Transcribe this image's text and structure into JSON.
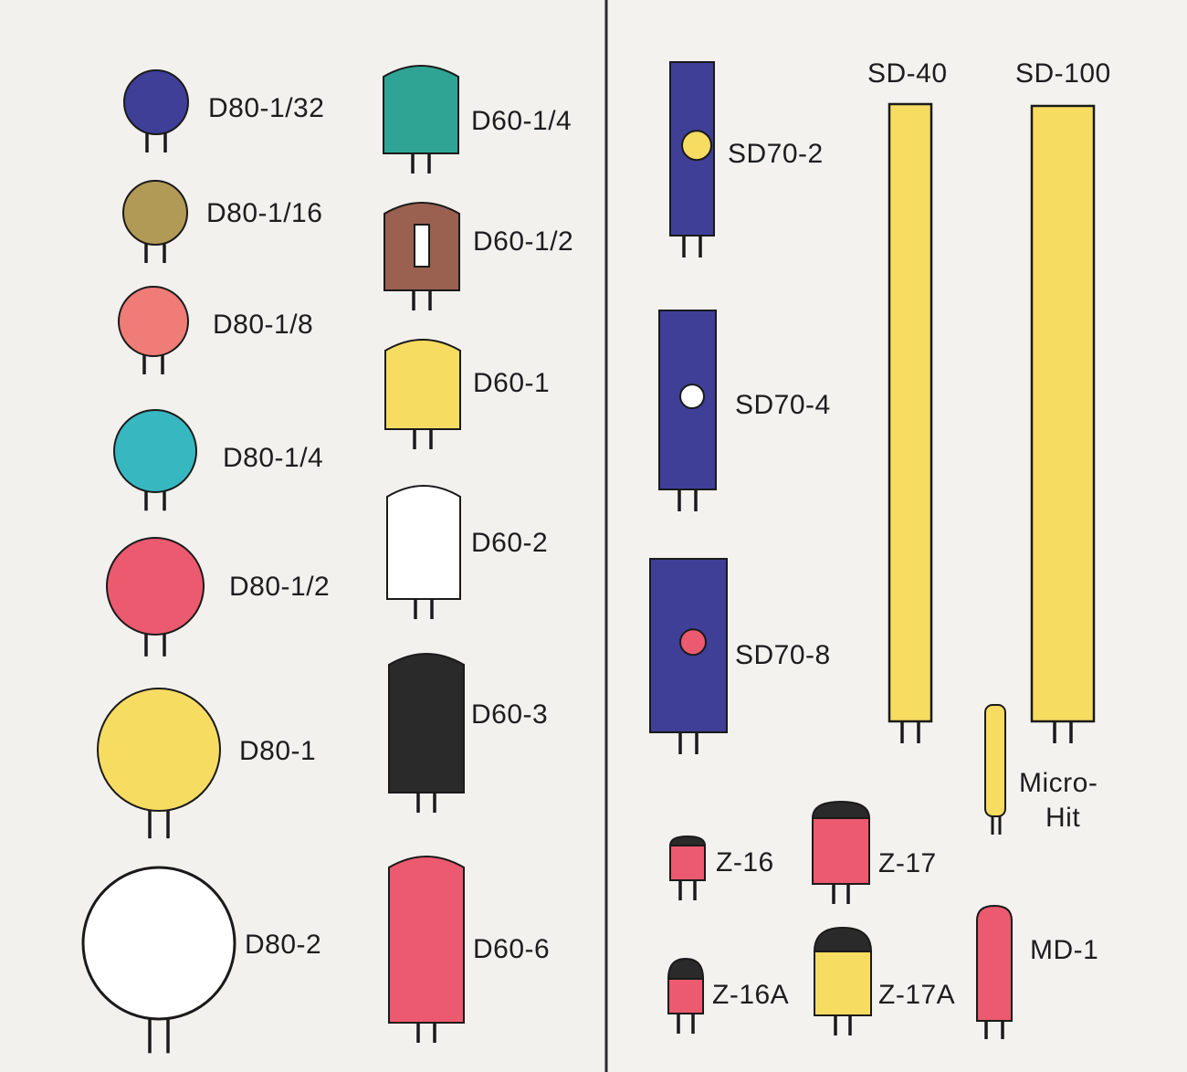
{
  "colors": {
    "page": "#f3f2ee",
    "spine": "#2a2a2a",
    "navy": "#3f3f98",
    "olive": "#b19a55",
    "salmon": "#ef7c76",
    "cyan": "#37b8c1",
    "pink": "#ec5a6f",
    "yellow": "#f7dc62",
    "teal": "#2fa494",
    "brown": "#9a6050",
    "black": "#2a2a2a",
    "white": "#ffffff",
    "outline": "#1a1a1a",
    "lead": "#1a1a1a"
  },
  "labels": {
    "d80_1_32": "D80-1/32",
    "d80_1_16": "D80-1/16",
    "d80_1_8": "D80-1/8",
    "d80_1_4": "D80-1/4",
    "d80_1_2": "D80-1/2",
    "d80_1": "D80-1",
    "d80_2": "D80-2",
    "d60_1_4": "D60-1/4",
    "d60_1_2": "D60-1/2",
    "d60_1": "D60-1",
    "d60_2": "D60-2",
    "d60_3": "D60-3",
    "d60_6": "D60-6",
    "sd70_2": "SD70-2",
    "sd70_4": "SD70-4",
    "sd70_8": "SD70-8",
    "sd_40": "SD-40",
    "sd_100": "SD-100",
    "micro_hit_line1": "Micro-",
    "micro_hit_line2": "Hit",
    "z_16": "Z-16",
    "z_17": "Z-17",
    "z_16a": "Z-16A",
    "z_17a": "Z-17A",
    "md_1": "MD-1"
  },
  "components": {
    "d80_1_32": {
      "color": "navy"
    },
    "d80_1_16": {
      "color": "olive"
    },
    "d80_1_8": {
      "color": "salmon"
    },
    "d80_1_4": {
      "color": "cyan"
    },
    "d80_1_2": {
      "color": "pink"
    },
    "d80_1": {
      "color": "yellow"
    },
    "d80_2": {
      "color": "white"
    },
    "d60_1_4": {
      "color": "teal"
    },
    "d60_1_2": {
      "color": "brown",
      "window_color": "white"
    },
    "d60_1": {
      "color": "yellow"
    },
    "d60_2": {
      "color": "white"
    },
    "d60_3": {
      "color": "black"
    },
    "d60_6": {
      "color": "pink"
    },
    "sd70_2": {
      "color": "navy",
      "dot_color": "yellow"
    },
    "sd70_4": {
      "color": "navy",
      "dot_color": "white"
    },
    "sd70_8": {
      "color": "navy",
      "dot_color": "pink"
    },
    "sd_40": {
      "color": "yellow"
    },
    "sd_100": {
      "color": "yellow"
    },
    "micro_hit": {
      "color": "yellow"
    },
    "z_16": {
      "color": "pink",
      "cap_color": "black"
    },
    "z_17": {
      "color": "pink",
      "cap_color": "black"
    },
    "z_16a": {
      "color": "pink",
      "cap_color": "black"
    },
    "z_17a": {
      "color": "yellow",
      "cap_color": "black"
    },
    "md_1": {
      "color": "pink"
    }
  }
}
